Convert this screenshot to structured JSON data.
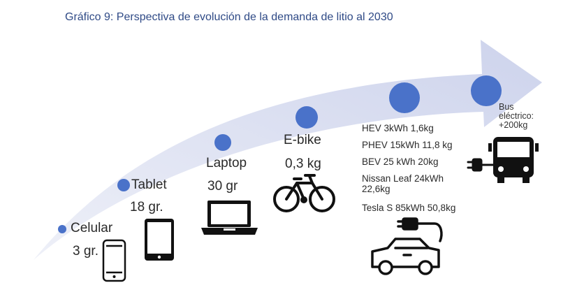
{
  "title": "Gráfico 9: Perspectiva de evolución de la demanda de litio al 2030",
  "items": [
    {
      "name": "Celular",
      "value": "3 gr.",
      "icon": "smartphone-icon"
    },
    {
      "name": "Tablet",
      "value": "18 gr.",
      "icon": "tablet-icon"
    },
    {
      "name": "Laptop",
      "value": "30 gr",
      "icon": "laptop-icon"
    },
    {
      "name": "E-bike",
      "value": "0,3 kg",
      "icon": "bicycle-icon"
    },
    {
      "name": "",
      "icon": "electric-car-icon",
      "lines": [
        "HEV 3kWh 1,6kg",
        "PHEV 15kWh 11,8 kg",
        "BEV 25 kWh 20kg",
        "Nissan Leaf 24kWh",
        "22,6kg",
        "Tesla S 85kWh 50,8kg"
      ]
    },
    {
      "name": "Bus",
      "name2": "eléctrico:",
      "value": "+200kg",
      "icon": "electric-bus-icon"
    }
  ],
  "colors": {
    "arrow": "#d5d9ee",
    "dot": "#4a72c9",
    "title": "#2f4a86"
  }
}
